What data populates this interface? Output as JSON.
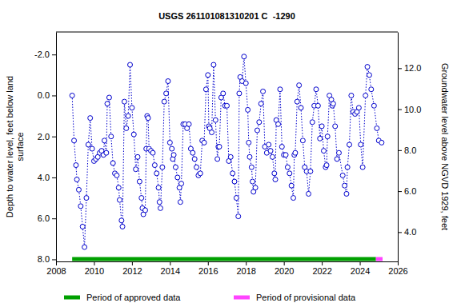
{
  "chart_data": {
    "type": "line",
    "title": "USGS 261101081310201 C  -1290",
    "y_label": [
      "Depth to water level, feet below land",
      "surface"
    ],
    "y2_label": "Groundwater level above NGVD 1929, feet",
    "xlim": [
      2008,
      2026
    ],
    "xticks": [
      2008,
      2010,
      2012,
      2014,
      2016,
      2018,
      2020,
      2022,
      2024,
      2026
    ],
    "ylim": [
      -3.1,
      8.1
    ],
    "yticks": [
      {
        "value": -2,
        "label": "-2.0"
      },
      {
        "value": 0,
        "label": "0.0"
      },
      {
        "value": 2,
        "label": "2.0"
      },
      {
        "value": 4,
        "label": "4.0"
      },
      {
        "value": 6,
        "label": "6.0"
      },
      {
        "value": 8,
        "label": "8.0"
      }
    ],
    "y2lim": [
      13.77,
      2.57
    ],
    "y2ticks": [
      {
        "value": 4,
        "label": "4.0"
      },
      {
        "value": 6,
        "label": "6.0"
      },
      {
        "value": 8,
        "label": "8.0"
      },
      {
        "value": 10,
        "label": "10.0"
      },
      {
        "value": 12,
        "label": "12.0"
      }
    ],
    "series": [
      {
        "color": "#0000cc",
        "marker": "circle-open",
        "line_style": "dotted",
        "x": [
          2008.85,
          2008.95,
          2009.05,
          2009.1,
          2009.2,
          2009.3,
          2009.4,
          2009.5,
          2009.6,
          2009.7,
          2009.8,
          2009.9,
          2010.0,
          2010.1,
          2010.2,
          2010.3,
          2010.4,
          2010.5,
          2010.55,
          2010.65,
          2010.7,
          2010.8,
          2010.9,
          2011.0,
          2011.1,
          2011.2,
          2011.3,
          2011.35,
          2011.45,
          2011.5,
          2011.6,
          2011.7,
          2011.8,
          2011.9,
          2012.0,
          2012.1,
          2012.2,
          2012.3,
          2012.4,
          2012.5,
          2012.55,
          2012.6,
          2012.7,
          2012.75,
          2012.8,
          2012.85,
          2012.9,
          2013.0,
          2013.1,
          2013.2,
          2013.3,
          2013.4,
          2013.45,
          2013.5,
          2013.6,
          2013.7,
          2013.8,
          2013.9,
          2014.0,
          2014.1,
          2014.15,
          2014.2,
          2014.3,
          2014.4,
          2014.5,
          2014.55,
          2014.6,
          2014.7,
          2014.8,
          2014.9,
          2015.0,
          2015.1,
          2015.2,
          2015.3,
          2015.4,
          2015.5,
          2015.6,
          2015.7,
          2015.8,
          2015.9,
          2016.0,
          2016.05,
          2016.1,
          2016.2,
          2016.3,
          2016.4,
          2016.5,
          2016.55,
          2016.6,
          2016.7,
          2016.8,
          2016.9,
          2017.0,
          2017.1,
          2017.2,
          2017.3,
          2017.4,
          2017.5,
          2017.6,
          2017.65,
          2017.7,
          2017.8,
          2017.9,
          2018.0,
          2018.1,
          2018.15,
          2018.2,
          2018.3,
          2018.35,
          2018.4,
          2018.5,
          2018.6,
          2018.7,
          2018.8,
          2018.9,
          2019.0,
          2019.1,
          2019.2,
          2019.3,
          2019.4,
          2019.5,
          2019.55,
          2019.6,
          2019.7,
          2019.8,
          2019.9,
          2020.0,
          2020.1,
          2020.2,
          2020.3,
          2020.4,
          2020.5,
          2020.55,
          2020.6,
          2020.7,
          2020.8,
          2020.9,
          2021.0,
          2021.1,
          2021.2,
          2021.3,
          2021.4,
          2021.5,
          2021.6,
          2021.7,
          2021.8,
          2021.9,
          2022.0,
          2022.1,
          2022.2,
          2022.25,
          2022.3,
          2022.4,
          2022.5,
          2022.55,
          2022.6,
          2022.7,
          2022.8,
          2022.9,
          2023.1,
          2023.2,
          2023.3,
          2023.35,
          2023.45,
          2023.55,
          2023.65,
          2023.75,
          2023.85,
          2023.95,
          2024.05,
          2024.15,
          2024.3,
          2024.4,
          2024.5,
          2024.6,
          2024.75,
          2024.9,
          2025.0,
          2025.15
        ],
        "values": [
          0.0,
          2.2,
          3.4,
          4.1,
          4.6,
          5.4,
          6.4,
          7.4,
          5.0,
          2.4,
          1.1,
          2.6,
          3.2,
          3.1,
          3.0,
          2.8,
          2.7,
          2.9,
          2.2,
          2.8,
          0.4,
          0.1,
          2.0,
          3.3,
          3.8,
          3.9,
          4.5,
          5.1,
          6.1,
          6.4,
          0.3,
          1.6,
          1.0,
          -1.5,
          0.6,
          1.9,
          3.6,
          3.0,
          4.2,
          5.0,
          5.5,
          5.8,
          5.6,
          2.6,
          1.0,
          1.1,
          2.6,
          2.7,
          2.8,
          3.4,
          3.8,
          4.5,
          5.2,
          5.5,
          3.5,
          0.3,
          -0.1,
          -0.7,
          2.3,
          2.6,
          3.1,
          2.9,
          3.5,
          4.0,
          4.5,
          5.2,
          4.3,
          1.4,
          1.4,
          1.6,
          1.4,
          2.6,
          2.8,
          3.1,
          3.5,
          3.9,
          3.8,
          2.2,
          2.3,
          -0.3,
          -1.0,
          1.5,
          1.6,
          1.8,
          -1.5,
          1.2,
          3.1,
          2.5,
          2.5,
          0.1,
          -0.1,
          0.5,
          0.5,
          3.2,
          3.0,
          3.8,
          4.2,
          5.0,
          5.9,
          -0.1,
          -0.9,
          -0.7,
          -1.9,
          -0.6,
          0.7,
          2.3,
          3.0,
          3.5,
          4.2,
          4.7,
          4.5,
          1.7,
          1.3,
          0.4,
          -0.2,
          2.5,
          2.8,
          2.4,
          2.7,
          3.0,
          3.8,
          4.1,
          1.2,
          1.4,
          -0.3,
          2.5,
          2.9,
          2.9,
          3.5,
          3.8,
          4.4,
          5.0,
          2.9,
          2.8,
          0.3,
          -0.5,
          0.6,
          2.2,
          3.5,
          3.7,
          4.8,
          3.7,
          1.3,
          0.5,
          -0.3,
          0.5,
          2.1,
          1.5,
          2.7,
          3.5,
          3.4,
          2.0,
          0.0,
          0.2,
          0.5,
          0.4,
          1.5,
          3.1,
          2.8,
          3.9,
          4.4,
          4.8,
          3.5,
          2.4,
          0.0,
          0.8,
          0.9,
          0.8,
          0.6,
          2.4,
          3.5,
          0.0,
          -1.4,
          -1.0,
          -0.3,
          0.5,
          1.6,
          2.2,
          2.3
        ]
      }
    ],
    "periods": [
      {
        "name": "Period of approved data",
        "color": "#00a000",
        "start": 2008.85,
        "end": 2024.85
      },
      {
        "name": "Period of provisional data",
        "color": "#ff44ff",
        "start": 2024.85,
        "end": 2025.2
      }
    ]
  }
}
